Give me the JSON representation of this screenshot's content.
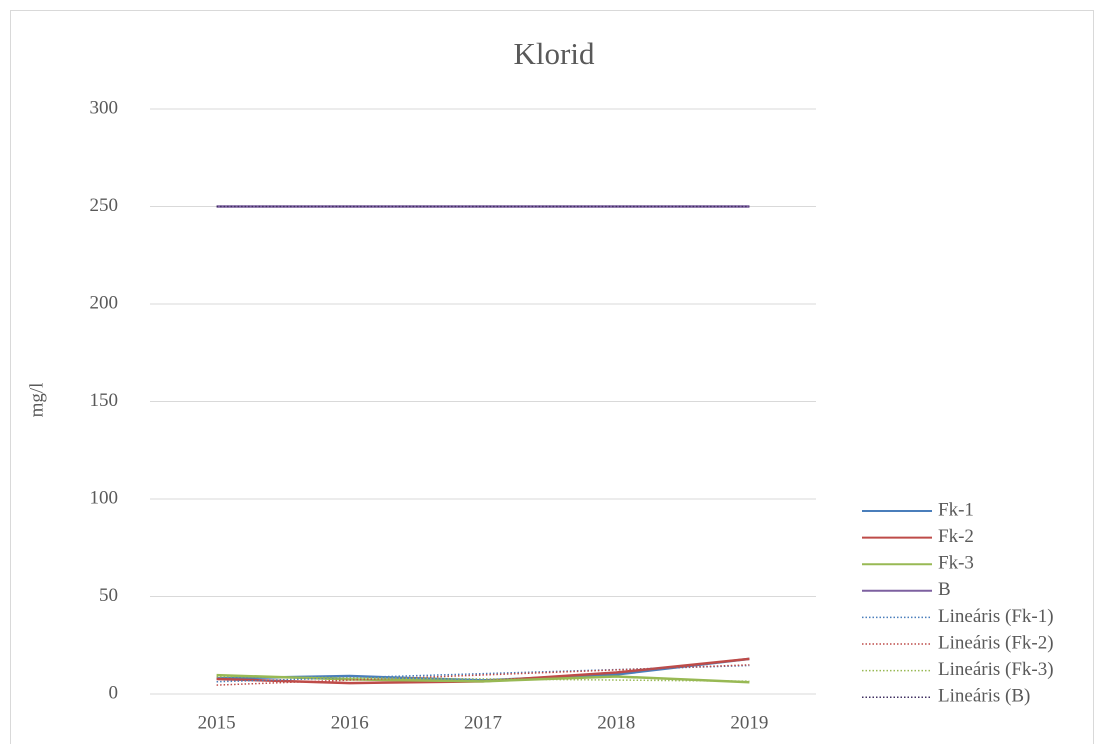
{
  "chart_data": {
    "type": "line",
    "title": "Klorid",
    "y_label": "mg/l",
    "categories": [
      "2015",
      "2016",
      "2017",
      "2018",
      "2019"
    ],
    "series": [
      {
        "name": "Fk-1",
        "color": "#4a7ebb",
        "values": [
          8,
          9.2,
          7,
          10,
          18
        ],
        "trendline": {
          "name": "Lineáris (Fk-1)",
          "color": "#4a7ebb"
        }
      },
      {
        "name": "Fk-2",
        "color": "#be4b48",
        "values": [
          7.7,
          5.6,
          6.5,
          11,
          18
        ],
        "trendline": {
          "name": "Lineáris (Fk-2)",
          "color": "#be4b48"
        }
      },
      {
        "name": "Fk-3",
        "color": "#98b954",
        "values": [
          9.7,
          7.5,
          6.5,
          9,
          6
        ],
        "trendline": {
          "name": "Lineáris (Fk-3)",
          "color": "#98b954"
        }
      },
      {
        "name": "B",
        "color": "#7d60a0",
        "values": [
          250,
          250,
          250,
          250,
          250
        ],
        "trendline": {
          "name": "Lineáris (B)",
          "color": "#3f2f60"
        }
      }
    ],
    "ylim": [
      0,
      300
    ],
    "yticks": [
      0,
      50,
      100,
      150,
      200,
      250,
      300
    ],
    "grid": true,
    "legend": "right"
  }
}
